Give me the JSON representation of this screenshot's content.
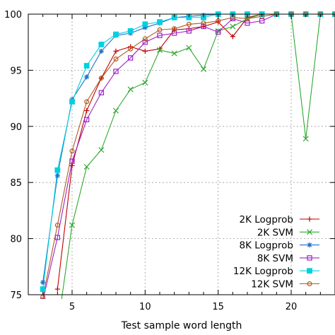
{
  "chart_data": {
    "type": "line",
    "title": "",
    "xlabel": "Test sample word length",
    "ylabel": "",
    "xlim": [
      2,
      23
    ],
    "ylim": [
      75,
      100
    ],
    "xticks": [
      5,
      10,
      15,
      20
    ],
    "yticks": [
      75,
      80,
      85,
      90,
      95,
      100
    ],
    "grid": true,
    "legend_position": "bottom-right",
    "series": [
      {
        "name": "2K Logprob",
        "color": "#c00000",
        "marker": "plus",
        "x": [
          4,
          5,
          6,
          7,
          8,
          9,
          10,
          11,
          12,
          13,
          14,
          15,
          16,
          17,
          18,
          19,
          20,
          21,
          22,
          23
        ],
        "y": [
          75.5,
          86.5,
          91.4,
          94.3,
          96.7,
          97.1,
          96.7,
          96.9,
          98.6,
          98.7,
          98.9,
          99.3,
          98.0,
          99.7,
          100,
          100,
          100,
          100,
          100,
          100
        ]
      },
      {
        "name": "2K SVM",
        "color": "#2fa82f",
        "marker": "x",
        "x": [
          4,
          5,
          6,
          7,
          8,
          9,
          10,
          11,
          12,
          13,
          14,
          15,
          16,
          17,
          18,
          19,
          20,
          21,
          22,
          23
        ],
        "y": [
          72,
          81.2,
          86.4,
          87.9,
          91.4,
          93.3,
          93.9,
          96.8,
          96.5,
          97.0,
          95.1,
          98.5,
          98.9,
          99.6,
          100,
          100,
          100,
          88.9,
          100,
          100
        ]
      },
      {
        "name": "8K Logprob",
        "color": "#1f6fc8",
        "marker": "star",
        "x": [
          3,
          4,
          5,
          6,
          7,
          8,
          9,
          10,
          11,
          12,
          13,
          14,
          15,
          16,
          17,
          18,
          19,
          20,
          21,
          22,
          23
        ],
        "y": [
          76.1,
          85.6,
          92.4,
          94.4,
          96.7,
          98.1,
          98.3,
          98.8,
          99.2,
          99.7,
          99.8,
          99.9,
          100,
          100,
          100,
          100,
          100,
          100,
          100,
          100,
          100
        ]
      },
      {
        "name": "8K SVM",
        "color": "#a020c8",
        "marker": "square",
        "x": [
          3,
          4,
          5,
          6,
          7,
          8,
          9,
          10,
          11,
          12,
          13,
          14,
          15,
          16,
          17,
          18,
          19,
          20,
          21,
          22,
          23
        ],
        "y": [
          74.5,
          80.1,
          86.9,
          90.6,
          93.0,
          94.9,
          96.1,
          97.5,
          98.1,
          98.3,
          98.5,
          98.9,
          98.4,
          99.6,
          99.2,
          99.4,
          100,
          100,
          100,
          100,
          100
        ]
      },
      {
        "name": "12K Logprob",
        "color": "#00d0e0",
        "marker": "filled-square",
        "x": [
          3,
          4,
          5,
          6,
          7,
          8,
          9,
          10,
          11,
          12,
          13,
          14,
          15,
          16,
          17,
          18,
          19,
          20,
          21,
          22,
          23
        ],
        "y": [
          75.5,
          86.1,
          92.2,
          95.4,
          97.3,
          98.2,
          98.5,
          99.1,
          99.3,
          99.7,
          99.7,
          99.7,
          100,
          100,
          100,
          100,
          100,
          100,
          100,
          100,
          100
        ]
      },
      {
        "name": "12K SVM",
        "color": "#b05a20",
        "marker": "circle",
        "x": [
          3,
          4,
          5,
          6,
          7,
          8,
          9,
          10,
          11,
          12,
          13,
          14,
          15,
          16,
          17,
          18,
          19,
          20,
          21,
          22,
          23
        ],
        "y": [
          74.8,
          81.2,
          87.8,
          92.2,
          94.3,
          96.0,
          96.9,
          97.8,
          98.6,
          98.7,
          99.1,
          99.2,
          99.4,
          99.7,
          99.6,
          99.8,
          100,
          100,
          100,
          100,
          100
        ]
      }
    ]
  }
}
